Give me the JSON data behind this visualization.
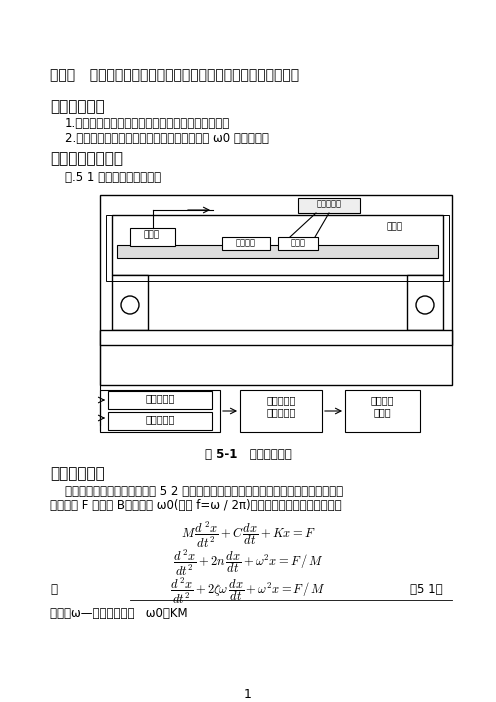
{
  "title": "实验五   单自由度系统强迫振动的幅频特性固有频率和阻尼的测量",
  "section1_title": "一、实验目的",
  "section1_item1": "1.学会测量单自由度系统强迫振动的幅频特性曲线。",
  "section1_item2": "2.学会根据幅频特性曲线确定系统的固有频率 ω0 和阻尼比。",
  "section2_title": "二、实验装置框图",
  "section2_desc": "图.5 1 表示实验装置的框图",
  "fig_caption": "图 5-1   实验装置框图",
  "section3_title": "三、实验原理",
  "section3_p1": "单自由度系统的力学模型如图 5 2 所示。在正弦激振力的作用下系统作简谐强迫振动，",
  "section3_p2": "设激振力 F 的幅值 B、圆频率 ω0(频率 f=ω / 2π)，系统的运动微分方程式为：",
  "eq_note": "式中：ω—系统固有频率   ω0＝KM",
  "eq3_label": "（5 1）",
  "or_word": "或",
  "page_num": "1",
  "bg_color": "#ffffff",
  "text_color": "#000000"
}
